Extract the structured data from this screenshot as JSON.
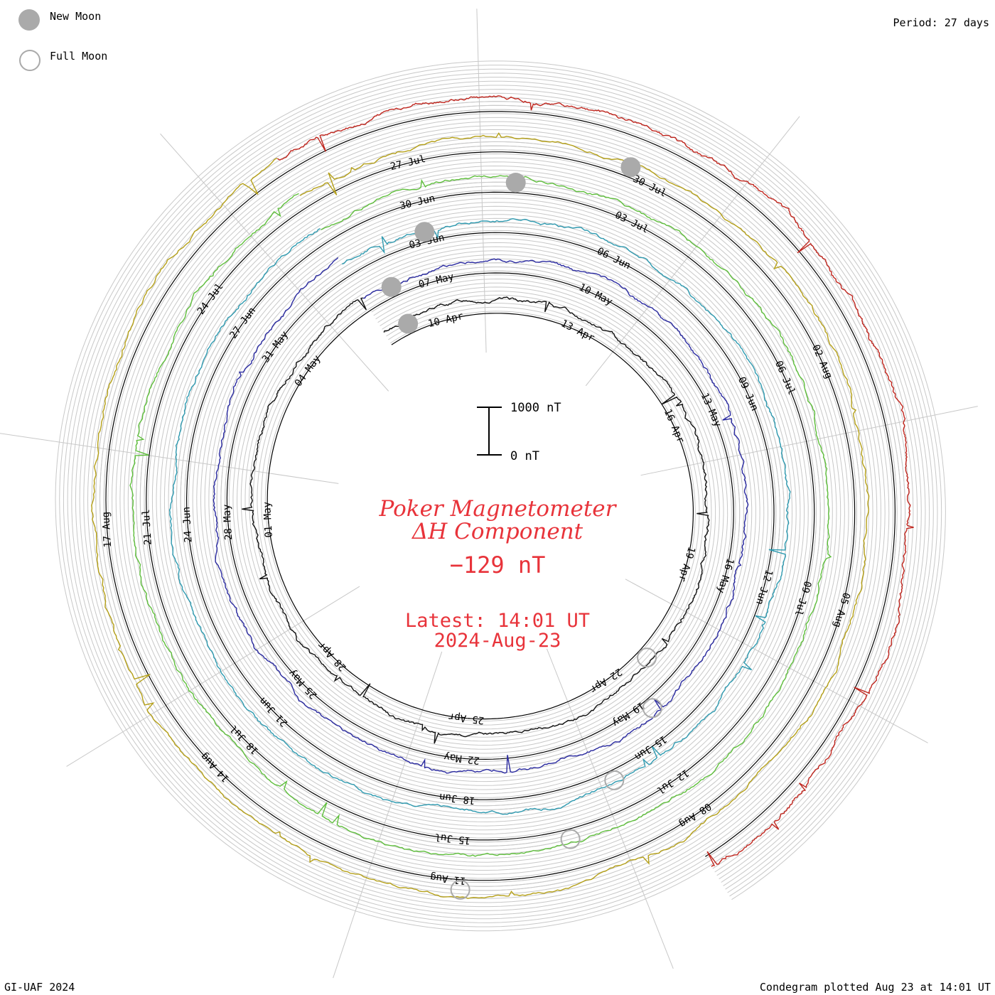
{
  "legend": {
    "new_moon_label": "New Moon",
    "full_moon_label": "Full Moon",
    "moon_color": "#aaaaaa"
  },
  "period_label": "Period: 27 days",
  "footer": {
    "left": "GI-UAF 2024",
    "right": "Condegram plotted Aug 23 at 14:01 UT"
  },
  "title": {
    "line1": "Poker Magnetometer",
    "line2": "ΔH Component",
    "value": "−129 nT",
    "latest": "Latest: 14:01 UT",
    "date": "2024-Aug-23",
    "color": "#e8333a"
  },
  "scale_bar": {
    "top_label": "1000 nT",
    "bottom_label": "0 nT"
  },
  "chart_data": {
    "type": "line",
    "title": "Poker Magnetometer ΔH Component",
    "period_days": 27,
    "units": "nT",
    "scale_bar_nT": 1000,
    "latest_value_nT": -129,
    "series": [
      {
        "color": "#111111",
        "date_labels": [
          "10-Apr",
          "13-Apr",
          "16-Apr",
          "19-Apr",
          "22-Apr",
          "25-Apr",
          "28-Apr",
          "01-May",
          "04-May"
        ]
      },
      {
        "color": "#2a2aa0",
        "date_labels": [
          "07-May",
          "10-May",
          "13-May",
          "16-May",
          "19-May",
          "22-May",
          "25-May",
          "28-May",
          "31-May"
        ]
      },
      {
        "color": "#2e9ab0",
        "date_labels": [
          "03-Jun",
          "06-Jun",
          "09-Jun",
          "12-Jun",
          "15-Jun",
          "18-Jun",
          "21-Jun",
          "24-Jun",
          "27-Jun"
        ]
      },
      {
        "color": "#5fbf3c",
        "date_labels": [
          "30-Jun",
          "03-Jul",
          "06-Jul",
          "09-Jul",
          "12-Jul",
          "15-Jul",
          "18-Jul",
          "21-Jul",
          "24-Jul"
        ]
      },
      {
        "color": "#b5a018",
        "date_labels": [
          "27-Jul",
          "30-Jul",
          "02-Aug",
          "05-Aug",
          "08-Aug",
          "11-Aug",
          "14-Aug",
          "17-Aug"
        ]
      },
      {
        "color": "#c0261e",
        "date_labels": []
      }
    ],
    "moon_phases": {
      "new": [
        "11-Apr",
        "08-May",
        "06-Jun",
        "05-Jul",
        "04-Aug"
      ],
      "full": [
        "23-Apr",
        "23-May",
        "22-Jun",
        "21-Jul",
        "19-Aug"
      ]
    }
  }
}
